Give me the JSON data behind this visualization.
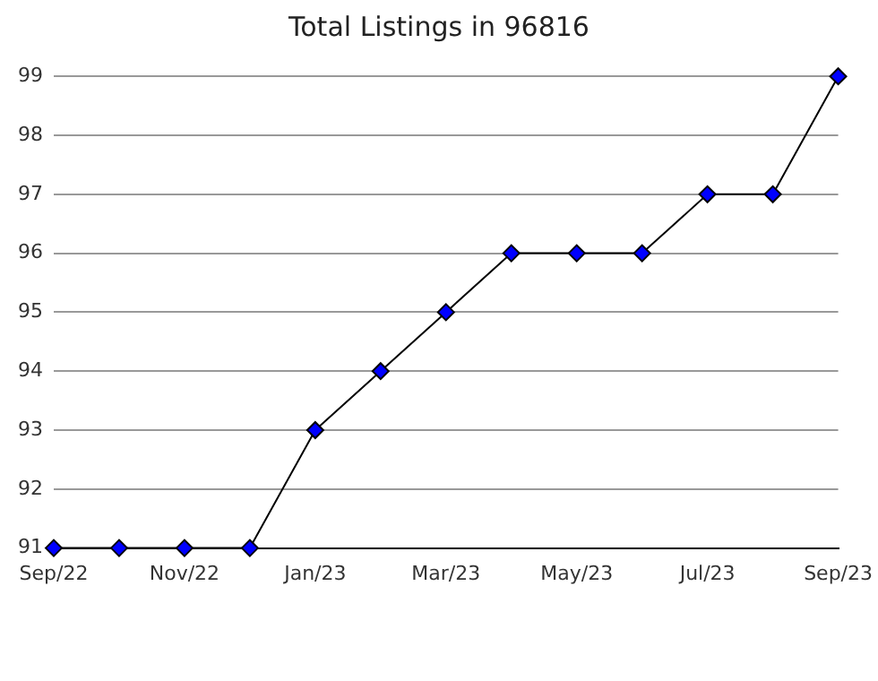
{
  "chart_data": {
    "type": "line",
    "title": "Total Listings in 96816",
    "categories": [
      "Sep/22",
      null,
      "Nov/22",
      null,
      "Jan/23",
      null,
      "Mar/23",
      null,
      "May/23",
      null,
      "Jul/23",
      null,
      "Sep/23"
    ],
    "series": [
      {
        "color": "#0000ff",
        "values": [
          91,
          91,
          91,
          91,
          93,
          94,
          95,
          96,
          96,
          96,
          97,
          97,
          99
        ]
      }
    ],
    "ylim": [
      91,
      99
    ],
    "yticks": [
      91,
      92,
      93,
      94,
      95,
      96,
      97,
      98,
      99
    ],
    "grid": "y",
    "legend": false,
    "marker": "diamond",
    "line_style": "solid"
  }
}
